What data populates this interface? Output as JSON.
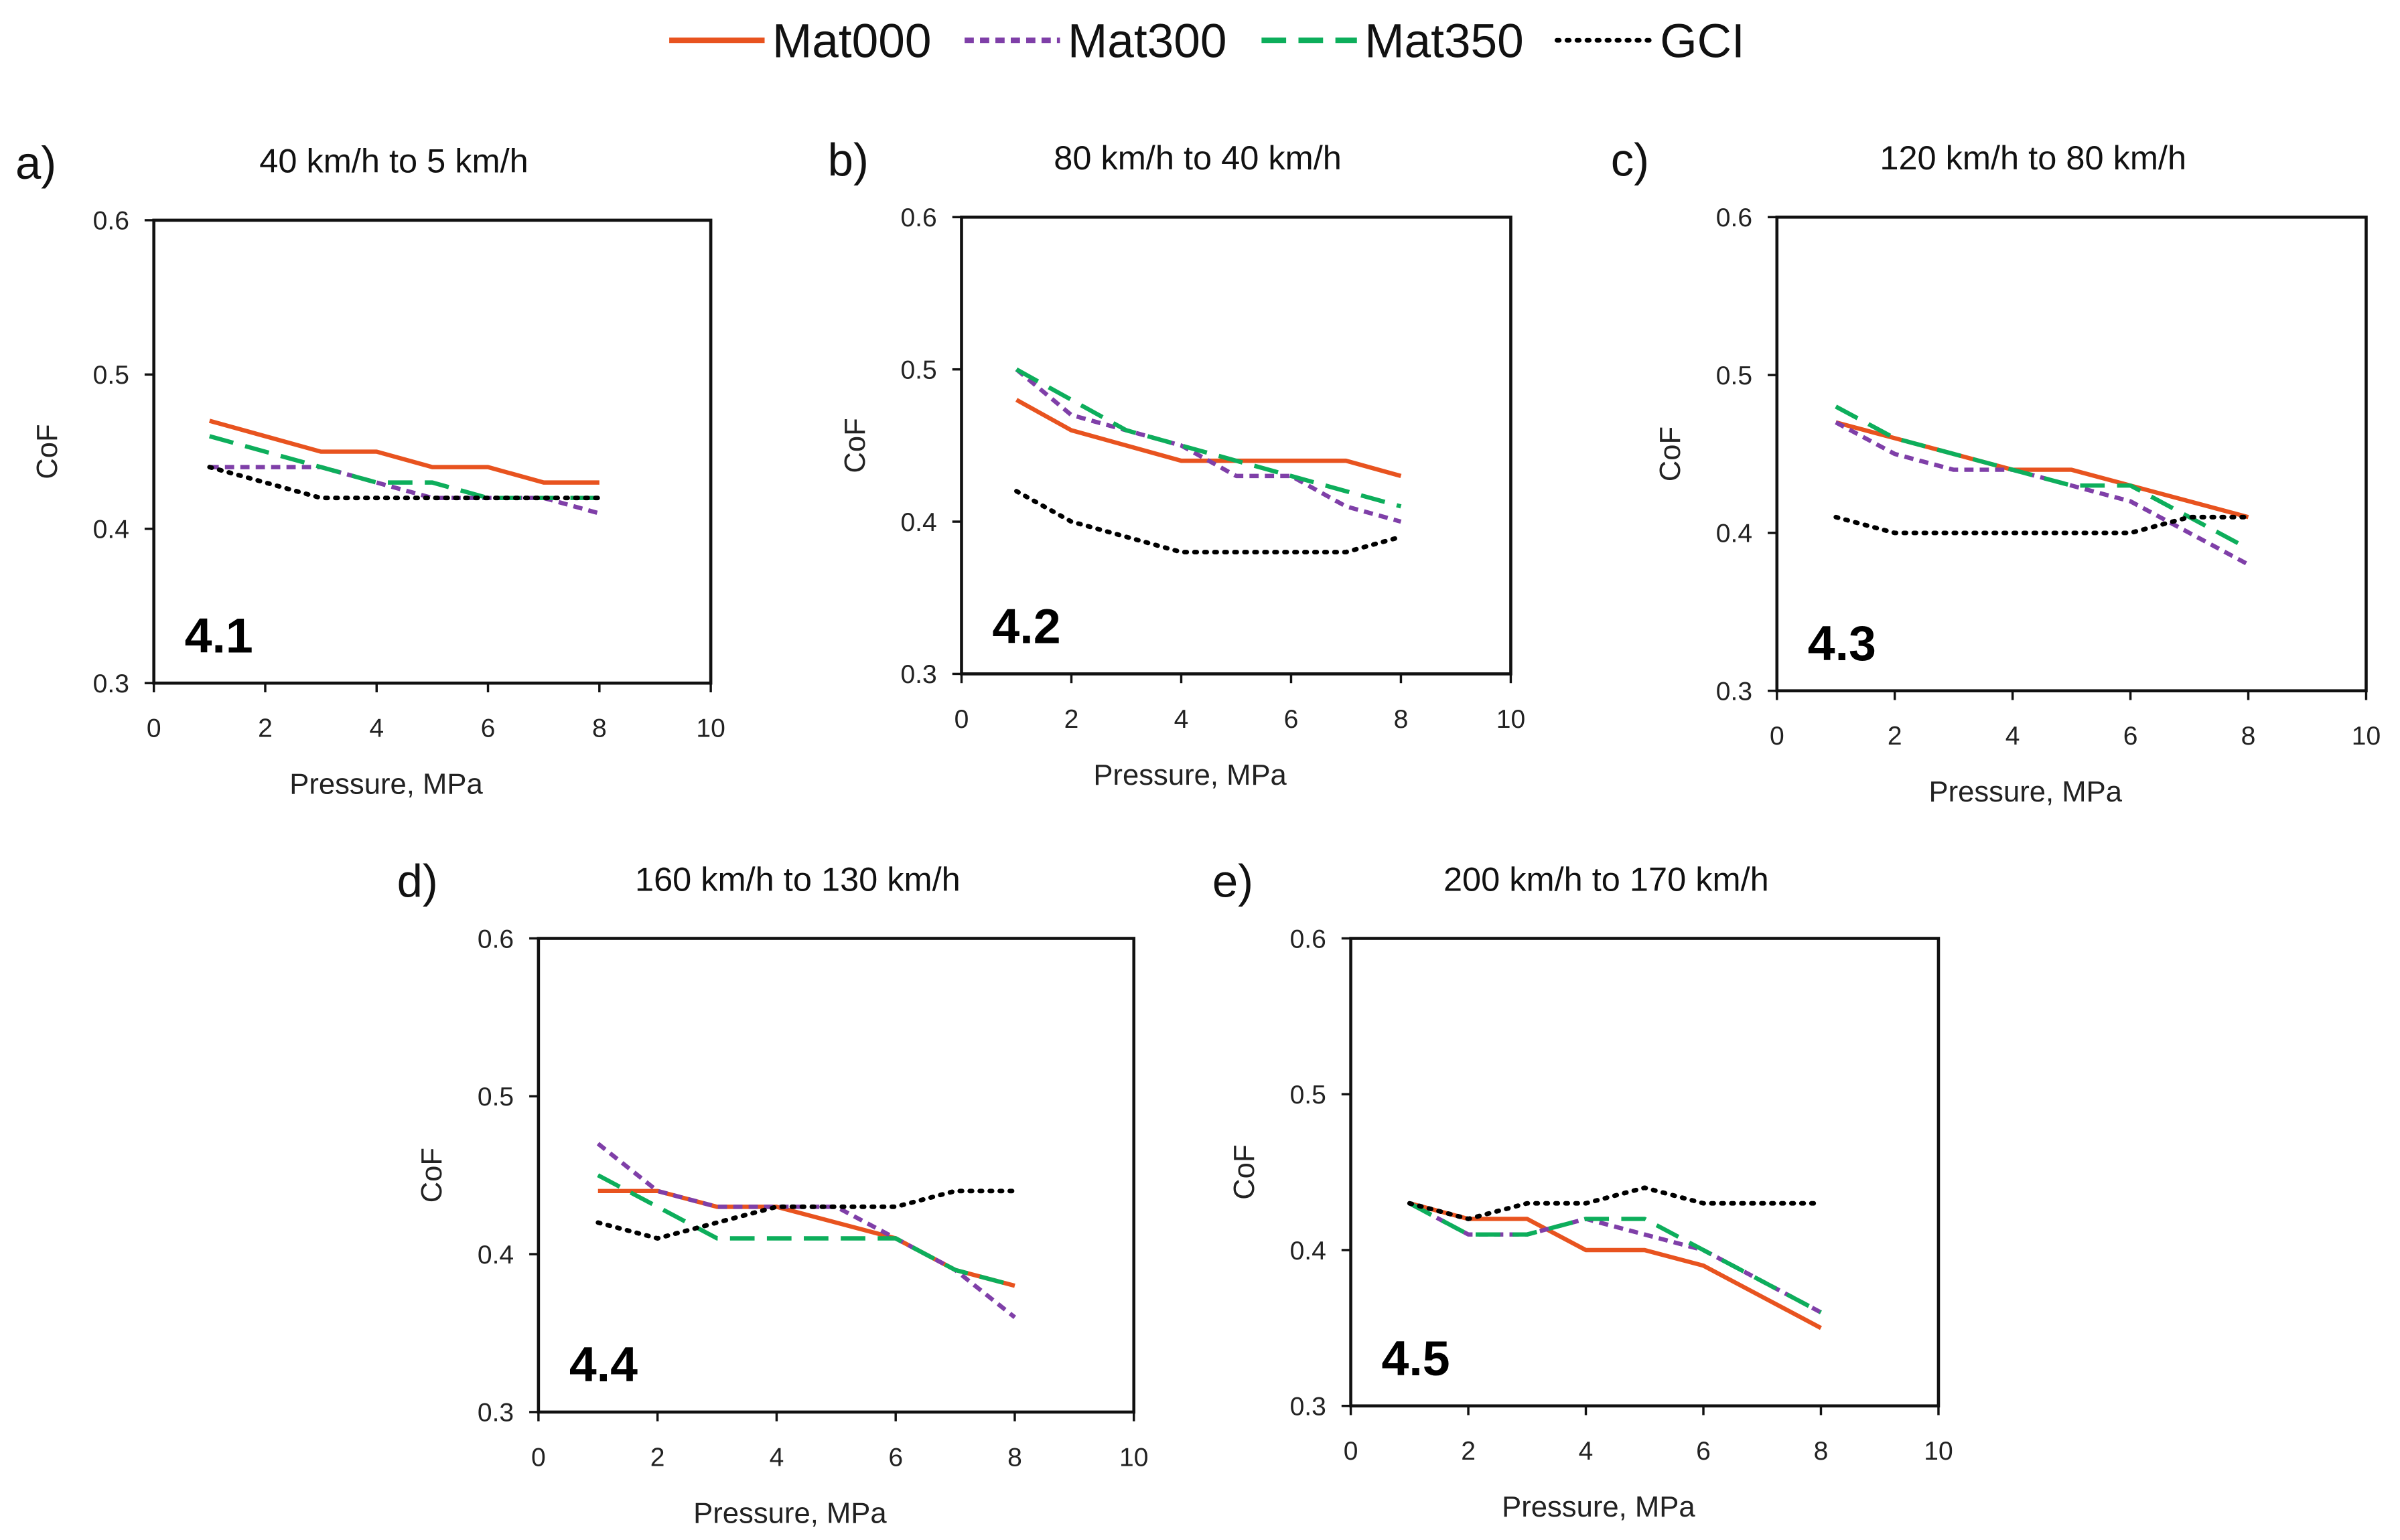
{
  "legend": {
    "position": "top-center",
    "entries": [
      {
        "name": "Mat000",
        "color": "#E8531F",
        "dash": "solid"
      },
      {
        "name": "Mat300",
        "color": "#7F3FA8",
        "dash": "short-dash"
      },
      {
        "name": "Mat350",
        "color": "#0DAE5B",
        "dash": "long-dash"
      },
      {
        "name": "GCI",
        "color": "#000000",
        "dash": "dotted"
      }
    ]
  },
  "chart_data": [
    {
      "type": "line",
      "panel_letter": "a)",
      "title": "40 km/h to 5 km/h",
      "tag": "4.1",
      "xlabel": "Pressure, MPa",
      "ylabel": "CoF",
      "xlim": [
        0,
        10
      ],
      "ylim": [
        0.3,
        0.6
      ],
      "xticks": [
        "0",
        "2",
        "4",
        "6",
        "8",
        "10"
      ],
      "yticks": [
        "0.3",
        "0.4",
        "0.5",
        "0.6"
      ],
      "grid": false,
      "x": [
        1,
        2,
        3,
        4,
        5,
        6,
        7,
        8
      ],
      "series": [
        {
          "name": "Mat000",
          "values": [
            0.47,
            0.46,
            0.45,
            0.45,
            0.44,
            0.44,
            0.43,
            0.43
          ]
        },
        {
          "name": "Mat300",
          "values": [
            0.44,
            0.44,
            0.44,
            0.43,
            0.42,
            0.42,
            0.42,
            0.41
          ]
        },
        {
          "name": "Mat350",
          "values": [
            0.46,
            0.45,
            0.44,
            0.43,
            0.43,
            0.42,
            0.42,
            0.42
          ]
        },
        {
          "name": "GCI",
          "values": [
            0.44,
            0.43,
            0.42,
            0.42,
            0.42,
            0.42,
            0.42,
            0.42
          ]
        }
      ]
    },
    {
      "type": "line",
      "panel_letter": "b)",
      "title": "80 km/h to 40 km/h",
      "tag": "4.2",
      "xlabel": "Pressure, MPa",
      "ylabel": "CoF",
      "xlim": [
        0,
        10
      ],
      "ylim": [
        0.3,
        0.6
      ],
      "xticks": [
        "0",
        "2",
        "4",
        "6",
        "8",
        "10"
      ],
      "yticks": [
        "0.3",
        "0.4",
        "0.5",
        "0.6"
      ],
      "grid": false,
      "x": [
        1,
        2,
        3,
        4,
        5,
        6,
        7,
        8
      ],
      "series": [
        {
          "name": "Mat000",
          "values": [
            0.48,
            0.46,
            0.45,
            0.44,
            0.44,
            0.44,
            0.44,
            0.43
          ]
        },
        {
          "name": "Mat300",
          "values": [
            0.5,
            0.47,
            0.46,
            0.45,
            0.43,
            0.43,
            0.41,
            0.4
          ]
        },
        {
          "name": "Mat350",
          "values": [
            0.5,
            0.48,
            0.46,
            0.45,
            0.44,
            0.43,
            0.42,
            0.41
          ]
        },
        {
          "name": "GCI",
          "values": [
            0.42,
            0.4,
            0.39,
            0.38,
            0.38,
            0.38,
            0.38,
            0.39
          ]
        }
      ]
    },
    {
      "type": "line",
      "panel_letter": "c)",
      "title": "120 km/h to 80 km/h",
      "tag": "4.3",
      "xlabel": "Pressure, MPa",
      "ylabel": "CoF",
      "xlim": [
        0,
        10
      ],
      "ylim": [
        0.3,
        0.6
      ],
      "xticks": [
        "0",
        "2",
        "4",
        "6",
        "8",
        "10"
      ],
      "yticks": [
        "0.3",
        "0.4",
        "0.5",
        "0.6"
      ],
      "grid": false,
      "x": [
        1,
        2,
        3,
        4,
        5,
        6,
        7,
        8
      ],
      "series": [
        {
          "name": "Mat000",
          "values": [
            0.47,
            0.46,
            0.45,
            0.44,
            0.44,
            0.43,
            0.42,
            0.41
          ]
        },
        {
          "name": "Mat300",
          "values": [
            0.47,
            0.45,
            0.44,
            0.44,
            0.43,
            0.42,
            0.4,
            0.38
          ]
        },
        {
          "name": "Mat350",
          "values": [
            0.48,
            0.46,
            0.45,
            0.44,
            0.43,
            0.43,
            0.41,
            0.39
          ]
        },
        {
          "name": "GCI",
          "values": [
            0.41,
            0.4,
            0.4,
            0.4,
            0.4,
            0.4,
            0.41,
            0.41
          ]
        }
      ]
    },
    {
      "type": "line",
      "panel_letter": "d)",
      "title": "160 km/h to 130 km/h",
      "tag": "4.4",
      "xlabel": "Pressure, MPa",
      "ylabel": "CoF",
      "xlim": [
        0,
        10
      ],
      "ylim": [
        0.3,
        0.6
      ],
      "xticks": [
        "0",
        "2",
        "4",
        "6",
        "8",
        "10"
      ],
      "yticks": [
        "0.3",
        "0.4",
        "0.5",
        "0.6"
      ],
      "grid": false,
      "x": [
        1,
        2,
        3,
        4,
        5,
        6,
        7,
        8
      ],
      "series": [
        {
          "name": "Mat000",
          "values": [
            0.44,
            0.44,
            0.43,
            0.43,
            0.42,
            0.41,
            0.39,
            0.38
          ]
        },
        {
          "name": "Mat300",
          "values": [
            0.47,
            0.44,
            0.43,
            0.43,
            0.43,
            0.41,
            0.39,
            0.36
          ]
        },
        {
          "name": "Mat350",
          "values": [
            0.45,
            0.43,
            0.41,
            0.41,
            0.41,
            0.41,
            0.39,
            0.38
          ]
        },
        {
          "name": "GCI",
          "values": [
            0.42,
            0.41,
            0.42,
            0.43,
            0.43,
            0.43,
            0.44,
            0.44
          ]
        }
      ]
    },
    {
      "type": "line",
      "panel_letter": "e)",
      "title": "200 km/h to 170 km/h",
      "tag": "4.5",
      "xlabel": "Pressure, MPa",
      "ylabel": "CoF",
      "xlim": [
        0,
        10
      ],
      "ylim": [
        0.3,
        0.6
      ],
      "xticks": [
        "0",
        "2",
        "4",
        "6",
        "8",
        "10"
      ],
      "yticks": [
        "0.3",
        "0.4",
        "0.5",
        "0.6"
      ],
      "grid": false,
      "x": [
        1,
        2,
        3,
        4,
        5,
        6,
        7,
        8
      ],
      "series": [
        {
          "name": "Mat000",
          "values": [
            0.43,
            0.42,
            0.42,
            0.4,
            0.4,
            0.39,
            0.37,
            0.35
          ]
        },
        {
          "name": "Mat300",
          "values": [
            0.43,
            0.41,
            0.41,
            0.42,
            0.41,
            0.4,
            0.38,
            0.36
          ]
        },
        {
          "name": "Mat350",
          "values": [
            0.43,
            0.41,
            0.41,
            0.42,
            0.42,
            0.4,
            0.38,
            0.36
          ]
        },
        {
          "name": "GCI",
          "values": [
            0.43,
            0.42,
            0.43,
            0.43,
            0.44,
            0.43,
            0.43,
            0.43
          ]
        }
      ]
    }
  ]
}
